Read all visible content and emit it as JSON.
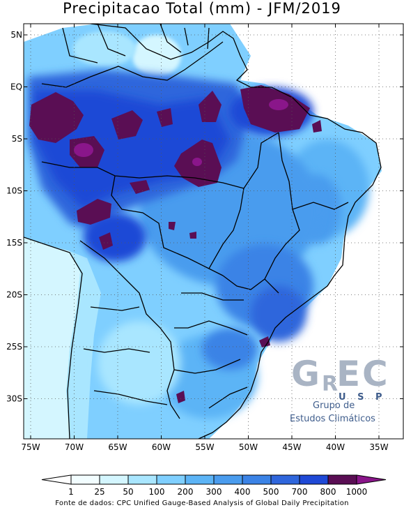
{
  "title": "Precipitacao Total (mm) - JFM/2019",
  "source": "Fonte de dados: CPC Unified Gauge-Based Analysis of Global Daily Precipitation",
  "map": {
    "lat_labels": [
      "5N",
      "EQ",
      "5S",
      "10S",
      "15S",
      "20S",
      "25S",
      "30S"
    ],
    "lon_labels": [
      "75W",
      "70W",
      "65W",
      "60W",
      "55W",
      "50W",
      "45W",
      "40W",
      "35W"
    ]
  },
  "legend": {
    "values": [
      "1",
      "25",
      "50",
      "100",
      "200",
      "300",
      "400",
      "500",
      "700",
      "800",
      "1000"
    ],
    "colors": [
      "#f2fdff",
      "#d4f6ff",
      "#a9e6ff",
      "#7fcfff",
      "#5cb4f6",
      "#4a9cee",
      "#3b83e6",
      "#2f66dc",
      "#1f49d6",
      "#5a0e54",
      "#8a168a"
    ],
    "units": "mm"
  },
  "logo": {
    "letters": [
      "G",
      "R",
      "E",
      "C"
    ],
    "usp": "U S P",
    "line1": "Grupo de",
    "line2": "Estudos Climáticos"
  }
}
